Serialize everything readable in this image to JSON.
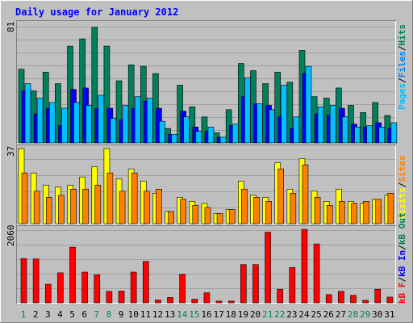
{
  "colors": {
    "background": "#c0c0c0",
    "title": "#0000ff",
    "grid": "#a0a0a0",
    "hits": "#00805c",
    "files": "#0080ff",
    "pages": "#00c0ff",
    "visits": "#ffff00",
    "sites": "#ff8000",
    "kbin": "#ff0000",
    "kbout": "#0000ff",
    "weekend_day": "#00805c",
    "weekday": "#000000"
  },
  "chart_data": [
    {
      "type": "bar",
      "title": "Daily usage for January 2012",
      "ymax_label": "81",
      "ylim": [
        0,
        81
      ],
      "legend_vertical": [
        {
          "text": "Pages",
          "color": "#00c0ff"
        },
        {
          "text": "Files",
          "color": "#0080ff"
        },
        {
          "text": "Hits",
          "color": "#00805c"
        }
      ],
      "legend_separator": "/",
      "categories": [
        "1",
        "2",
        "3",
        "4",
        "5",
        "6",
        "7",
        "8",
        "9",
        "10",
        "11",
        "12",
        "13",
        "14",
        "15",
        "16",
        "17",
        "18",
        "19",
        "20",
        "21",
        "22",
        "23",
        "24",
        "25",
        "26",
        "27",
        "28",
        "29",
        "30",
        "31"
      ],
      "weekend_days": [
        "1",
        "7",
        "8",
        "14",
        "15",
        "21",
        "22",
        "28",
        "29"
      ],
      "series": [
        {
          "name": "Hits",
          "color": "#00805c",
          "values": [
            51,
            36,
            49,
            41,
            67,
            72,
            80,
            67,
            43,
            54,
            53,
            48,
            10,
            40,
            25,
            18,
            7,
            23,
            55,
            50,
            41,
            49,
            42,
            64,
            32,
            31,
            38,
            26,
            21,
            28,
            19
          ]
        },
        {
          "name": "Files",
          "color": "#0000ff",
          "values": [
            36,
            20,
            24,
            12,
            37,
            38,
            24,
            24,
            16,
            24,
            29,
            24,
            6,
            22,
            11,
            8,
            4,
            12,
            32,
            27,
            26,
            18,
            10,
            48,
            20,
            19,
            24,
            13,
            11,
            14,
            10
          ]
        },
        {
          "name": "Pages",
          "color": "#00c0ff",
          "values": [
            41,
            31,
            28,
            24,
            28,
            26,
            33,
            17,
            26,
            32,
            31,
            15,
            6,
            18,
            8,
            11,
            4,
            13,
            45,
            27,
            23,
            40,
            18,
            53,
            25,
            26,
            18,
            11,
            12,
            11,
            14
          ]
        }
      ]
    },
    {
      "type": "bar",
      "ymax_label": "37",
      "ylim": [
        0,
        37
      ],
      "legend_vertical": [
        {
          "text": "Visits",
          "color": "#ffff00"
        },
        {
          "text": "Sites",
          "color": "#ff8000"
        }
      ],
      "legend_separator": "/",
      "categories": [
        "1",
        "2",
        "3",
        "4",
        "5",
        "6",
        "7",
        "8",
        "9",
        "10",
        "11",
        "12",
        "13",
        "14",
        "15",
        "16",
        "17",
        "18",
        "19",
        "20",
        "21",
        "22",
        "23",
        "24",
        "25",
        "26",
        "27",
        "28",
        "29",
        "30",
        "31"
      ],
      "series": [
        {
          "name": "Visits",
          "color": "#ffff00",
          "values": [
            37,
            25,
            19,
            18,
            19,
            23,
            28,
            37,
            22,
            27,
            21,
            15,
            6,
            13,
            11,
            10,
            5,
            7,
            21,
            14,
            13,
            30,
            17,
            32,
            16,
            11,
            17,
            11,
            10,
            12,
            14
          ]
        },
        {
          "name": "Sites",
          "color": "#ff8000",
          "values": [
            25,
            16,
            13,
            14,
            17,
            17,
            19,
            25,
            16,
            25,
            16,
            17,
            6,
            12,
            9,
            8,
            5,
            7,
            17,
            13,
            11,
            27,
            15,
            29,
            13,
            9,
            11,
            10,
            11,
            12,
            15
          ]
        }
      ]
    },
    {
      "type": "bar",
      "ymax_label": "2060",
      "ylim": [
        0,
        2060
      ],
      "legend_vertical": [
        {
          "text": "kB F",
          "color": "#ff0000"
        },
        {
          "text": "kB In",
          "color": "#0000ff"
        },
        {
          "text": "kB Out",
          "color": "#00805c"
        }
      ],
      "legend_separator": "/",
      "categories": [
        "1",
        "2",
        "3",
        "4",
        "5",
        "6",
        "7",
        "8",
        "9",
        "10",
        "11",
        "12",
        "13",
        "14",
        "15",
        "16",
        "17",
        "18",
        "19",
        "20",
        "21",
        "22",
        "23",
        "24",
        "25",
        "26",
        "27",
        "28",
        "29",
        "30",
        "31"
      ],
      "series": [
        {
          "name": "kB F",
          "color": "#ff0000",
          "values": [
            1240,
            1230,
            520,
            840,
            1560,
            860,
            790,
            320,
            330,
            860,
            1160,
            80,
            150,
            800,
            100,
            280,
            50,
            50,
            1070,
            1070,
            1980,
            380,
            990,
            2060,
            1650,
            230,
            320,
            210,
            70,
            380,
            160
          ]
        }
      ]
    }
  ]
}
